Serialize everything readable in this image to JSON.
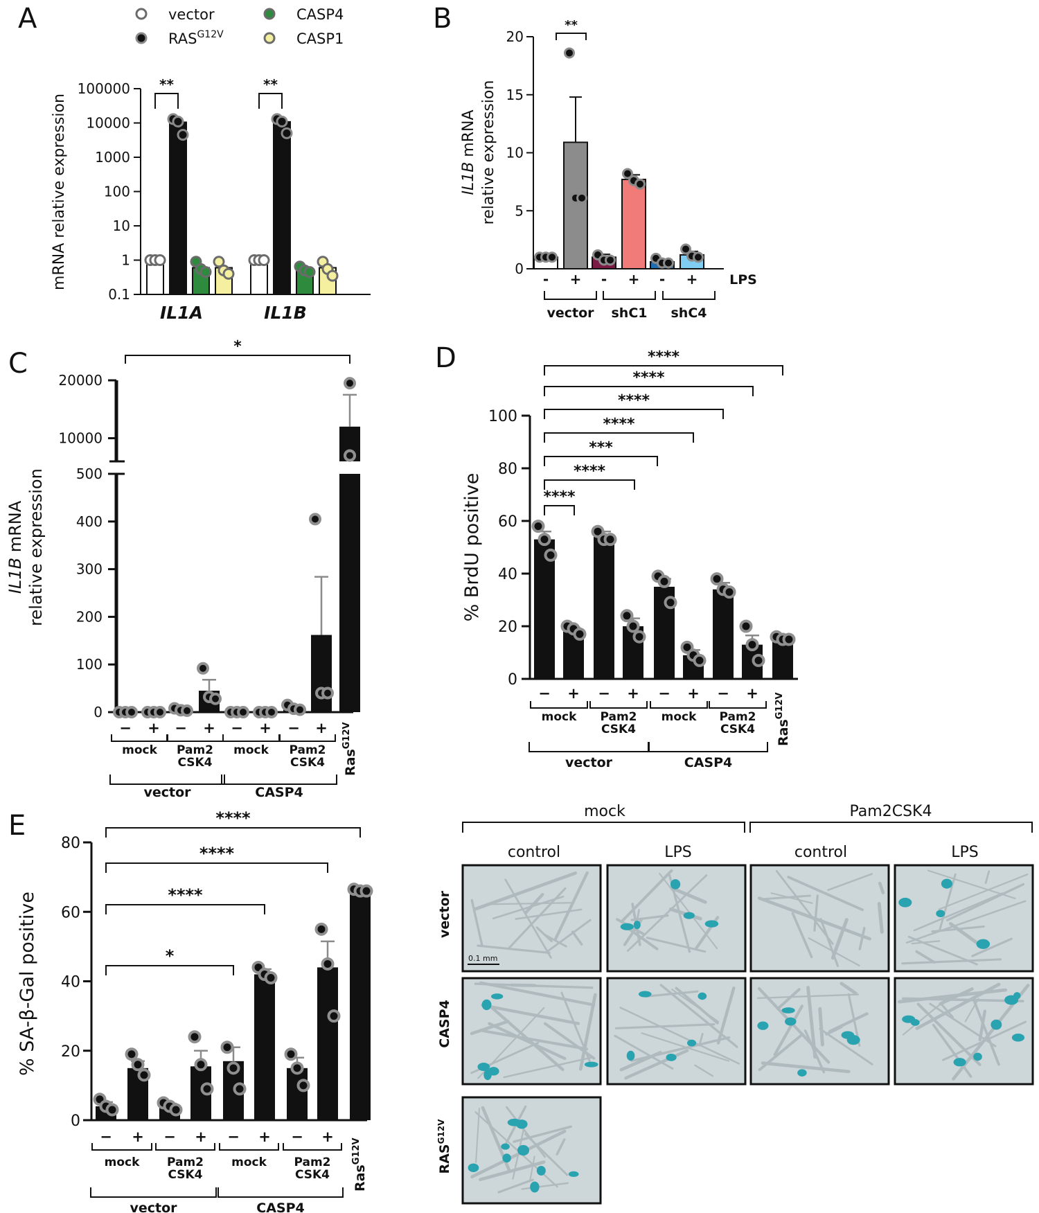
{
  "figure": {
    "panels": {
      "A": "A",
      "B": "B",
      "C": "C",
      "D": "D",
      "E": "E"
    }
  },
  "chart_data": [
    {
      "id": "A",
      "type": "bar",
      "yscale": "log",
      "categories": [
        "IL1A",
        "IL1B"
      ],
      "ylabel": "mRNA relative expression",
      "ylim": [
        0.1,
        100000
      ],
      "yticks": [
        "0.1",
        "1",
        "10",
        "100",
        "1000",
        "10000",
        "100000"
      ],
      "legend": [
        "vector",
        "RAS",
        "CASP4",
        "CASP1"
      ],
      "legend_sup": "G12V",
      "series": [
        {
          "name": "vector",
          "color": "#ffffff",
          "values": [
            1,
            1
          ],
          "points": [
            [
              1,
              1,
              1
            ],
            [
              1,
              1,
              1
            ]
          ]
        },
        {
          "name": "RAS",
          "color": "#111111",
          "values": [
            10500,
            10800
          ],
          "points": [
            [
              13000,
              11000,
              4500
            ],
            [
              13000,
              11000,
              5000
            ]
          ]
        },
        {
          "name": "CASP4",
          "color": "#2e8b3e",
          "values": [
            0.6,
            0.55
          ],
          "points": [
            [
              0.9,
              0.55,
              0.45
            ],
            [
              0.65,
              0.5,
              0.45
            ]
          ]
        },
        {
          "name": "CASP1",
          "color": "#f5f0a0",
          "values": [
            0.6,
            0.6
          ],
          "points": [
            [
              0.9,
              0.5,
              0.4
            ],
            [
              0.9,
              0.55,
              0.35
            ]
          ]
        }
      ],
      "sig": [
        {
          "label": "**"
        },
        {
          "label": "**"
        }
      ]
    },
    {
      "id": "B",
      "type": "bar",
      "ylabel_italic": "IL1B",
      "ylabel_rest": " mRNA",
      "ylabel2": "relative expression",
      "ylim": [
        0,
        20
      ],
      "yticks": [
        "0",
        "5",
        "10",
        "15",
        "20"
      ],
      "ticklabels": [
        "-",
        "+",
        "-",
        "+",
        "-",
        "+"
      ],
      "condition_label": "LPS",
      "groups": [
        "vector",
        "shC1",
        "shC4"
      ],
      "bars": [
        {
          "value": 1.0,
          "err": 0.05,
          "color": "#ffffff",
          "points": [
            1.0,
            1.0,
            1.0
          ]
        },
        {
          "value": 10.9,
          "err": 3.9,
          "color": "#8c8c8c",
          "points": [
            18.6,
            6.1,
            6.1
          ]
        },
        {
          "value": 1.0,
          "err": 0.25,
          "color": "#7b1a44",
          "points": [
            1.2,
            0.75,
            0.75
          ]
        },
        {
          "value": 7.7,
          "err": 0.4,
          "color": "#f07b78",
          "points": [
            8.2,
            7.6,
            7.3
          ]
        },
        {
          "value": 0.6,
          "err": 0.2,
          "color": "#1f6fb0",
          "points": [
            0.9,
            0.5,
            0.5
          ]
        },
        {
          "value": 1.2,
          "err": 0.3,
          "color": "#7fcdf2",
          "points": [
            1.7,
            1.1,
            1.0
          ]
        }
      ],
      "sig": [
        {
          "label": "**"
        }
      ]
    },
    {
      "id": "C",
      "type": "bar",
      "ylabel_italic": "IL1B",
      "ylabel_rest": " mRNA",
      "ylabel2": "relative expression",
      "yticks_low": [
        "0",
        "100",
        "200",
        "300",
        "400",
        "500"
      ],
      "yticks_high": [
        "10000",
        "20000"
      ],
      "ticklabels": [
        "−",
        "+",
        "−",
        "+",
        "−",
        "+",
        "−",
        "+"
      ],
      "treatments": [
        "mock",
        "Pam2\nCSK4",
        "mock",
        "Pam2\nCSK4"
      ],
      "groups": [
        "vector",
        "CASP4"
      ],
      "ras_label": "Ras",
      "ras_sup": "G12V",
      "bars": [
        {
          "value": 0,
          "err": 0,
          "points": [
            0,
            0,
            0
          ]
        },
        {
          "value": 0,
          "err": 0,
          "points": [
            0,
            0,
            0
          ]
        },
        {
          "value": 5,
          "err": 2,
          "points": [
            8,
            4,
            3
          ]
        },
        {
          "value": 45,
          "err": 23,
          "points": [
            92,
            32,
            28
          ]
        },
        {
          "value": 0,
          "err": 0,
          "points": [
            0,
            0,
            0
          ]
        },
        {
          "value": 0,
          "err": 0,
          "points": [
            0,
            0,
            0
          ]
        },
        {
          "value": 8,
          "err": 4,
          "points": [
            15,
            7,
            5
          ]
        },
        {
          "value": 162,
          "err": 122,
          "points": [
            405,
            40,
            40
          ]
        },
        {
          "value": 12000,
          "err": 5500,
          "points": [
            19500,
            7000,
            7000
          ]
        }
      ],
      "sig": [
        {
          "label": "*"
        }
      ]
    },
    {
      "id": "D",
      "type": "bar",
      "ylabel": "% BrdU positive",
      "ylim": [
        0,
        100
      ],
      "yticks": [
        "0",
        "20",
        "40",
        "60",
        "80",
        "100"
      ],
      "ticklabels": [
        "−",
        "+",
        "−",
        "+",
        "−",
        "+",
        "−",
        "+"
      ],
      "treatments": [
        "mock",
        "Pam2\nCSK4",
        "mock",
        "Pam2\nCSK4"
      ],
      "groups": [
        "vector",
        "CASP4"
      ],
      "ras_label": "Ras",
      "ras_sup": "G12V",
      "bars": [
        {
          "value": 53,
          "err": 3,
          "points": [
            58,
            53,
            47
          ]
        },
        {
          "value": 18,
          "err": 1.5,
          "points": [
            20,
            19,
            17
          ]
        },
        {
          "value": 54,
          "err": 2,
          "points": [
            56,
            53,
            53
          ]
        },
        {
          "value": 20,
          "err": 3,
          "points": [
            24,
            20,
            16
          ]
        },
        {
          "value": 35,
          "err": 3,
          "points": [
            39,
            37,
            29
          ]
        },
        {
          "value": 9,
          "err": 2,
          "points": [
            12,
            9,
            7
          ]
        },
        {
          "value": 34,
          "err": 2.5,
          "points": [
            38,
            34,
            33
          ]
        },
        {
          "value": 13,
          "err": 3.5,
          "points": [
            20,
            13,
            7
          ]
        },
        {
          "value": 15,
          "err": 1,
          "points": [
            16,
            15,
            15
          ]
        }
      ],
      "sig": [
        {
          "label": "****"
        },
        {
          "label": "****"
        },
        {
          "label": "***"
        },
        {
          "label": "****"
        },
        {
          "label": "****"
        },
        {
          "label": "****"
        },
        {
          "label": "****"
        }
      ]
    },
    {
      "id": "E",
      "type": "bar",
      "ylabel": "% SA-β-Gal positive",
      "ylim": [
        0,
        80
      ],
      "yticks": [
        "0",
        "20",
        "40",
        "60",
        "80"
      ],
      "ticklabels": [
        "−",
        "+",
        "−",
        "+",
        "−",
        "+",
        "−",
        "+"
      ],
      "treatments": [
        "mock",
        "Pam2\nCSK4",
        "mock",
        "Pam2\nCSK4"
      ],
      "groups": [
        "vector",
        "CASP4"
      ],
      "ras_label": "Ras",
      "ras_sup": "G12V",
      "bars": [
        {
          "value": 4,
          "err": 1.2,
          "points": [
            6,
            4,
            3
          ]
        },
        {
          "value": 15,
          "err": 2,
          "points": [
            19,
            16,
            13
          ]
        },
        {
          "value": 4,
          "err": 0.8,
          "points": [
            5,
            4,
            3
          ]
        },
        {
          "value": 15.5,
          "err": 4.5,
          "points": [
            24,
            16,
            9
          ]
        },
        {
          "value": 17,
          "err": 4,
          "points": [
            21,
            15,
            9
          ]
        },
        {
          "value": 42,
          "err": 1.5,
          "points": [
            44,
            42,
            41
          ]
        },
        {
          "value": 15,
          "err": 3,
          "points": [
            19,
            15,
            10
          ]
        },
        {
          "value": 44,
          "err": 7.5,
          "points": [
            55,
            45,
            30
          ]
        },
        {
          "value": 66,
          "err": 0.5,
          "points": [
            66.5,
            66,
            66
          ]
        }
      ],
      "sig": [
        {
          "label": "*"
        },
        {
          "label": "****"
        },
        {
          "label": "****"
        },
        {
          "label": "****"
        }
      ]
    }
  ],
  "micrographs": {
    "column_groups": [
      "mock",
      "Pam2CSK4"
    ],
    "columns": [
      "control",
      "LPS",
      "control",
      "LPS"
    ],
    "rows": [
      "vector",
      "CASP4",
      "RAS"
    ],
    "ras_sup": "G12V",
    "scale_bar": "0.1 mm"
  }
}
